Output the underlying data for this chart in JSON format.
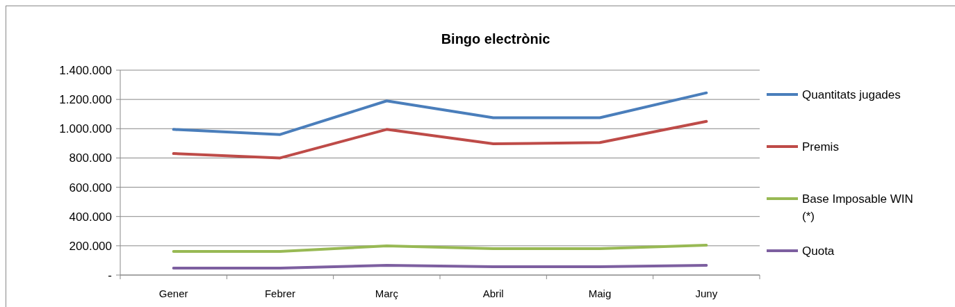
{
  "chart_data": {
    "type": "line",
    "title": "Bingo electrònic",
    "categories": [
      "Gener",
      "Febrer",
      "Març",
      "Abril",
      "Maig",
      "Juny"
    ],
    "series": [
      {
        "name": "Quantitats jugades",
        "color": "#4a7ebb",
        "values": [
          995000,
          960000,
          1190000,
          1075000,
          1075000,
          1245000
        ]
      },
      {
        "name": "Premis",
        "color": "#be4b48",
        "values": [
          830000,
          800000,
          995000,
          897000,
          905000,
          1050000
        ]
      },
      {
        "name": "Base Imposable WIN (*)",
        "color": "#98b954",
        "values": [
          161000,
          161000,
          199000,
          180000,
          180000,
          204000
        ]
      },
      {
        "name": "Quota",
        "color": "#7d5fa0",
        "values": [
          47000,
          47000,
          66000,
          57000,
          57000,
          66000
        ]
      }
    ],
    "ylim": [
      0,
      1400000
    ],
    "yticks": [
      {
        "value": 0,
        "label": "-"
      },
      {
        "value": 200000,
        "label": "200.000"
      },
      {
        "value": 400000,
        "label": "400.000"
      },
      {
        "value": 600000,
        "label": "600.000"
      },
      {
        "value": 800000,
        "label": "800.000"
      },
      {
        "value": 1000000,
        "label": "1.000.000"
      },
      {
        "value": 1200000,
        "label": "1.200.000"
      },
      {
        "value": 1400000,
        "label": "1.400.000"
      }
    ],
    "grid": "y",
    "legend": "right",
    "marker": "none",
    "line_style": "solid"
  }
}
